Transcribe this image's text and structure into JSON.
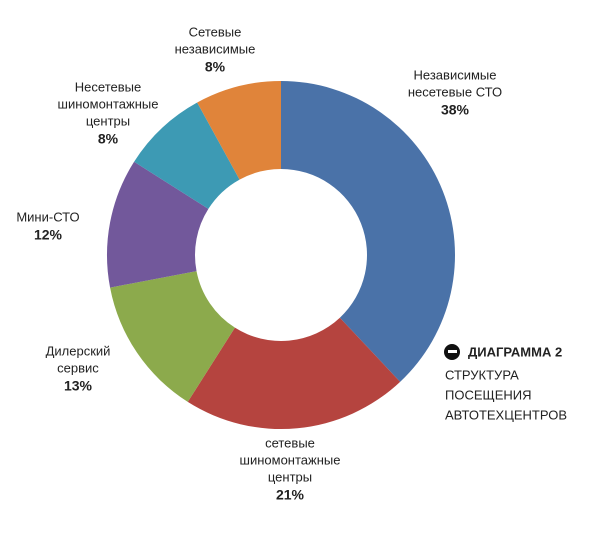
{
  "chart_data": {
    "type": "donut",
    "categories": [
      [
        "Независимые",
        "несетевые СТО"
      ],
      [
        "сетевые",
        "шиномонтажные",
        "центры"
      ],
      [
        "Дилерский",
        "сервис"
      ],
      [
        "Мини-СТО"
      ],
      [
        "Несетевые",
        "шиномонтажные",
        "центры"
      ],
      [
        "Сетевые",
        "независимые"
      ]
    ],
    "values": [
      38,
      21,
      13,
      12,
      8,
      8
    ],
    "value_labels": [
      "38%",
      "21%",
      "13%",
      "12%",
      "8%",
      "8%"
    ],
    "colors": [
      "#4a72a8",
      "#b5443f",
      "#8caa4c",
      "#72589b",
      "#3d9ab4",
      "#e0843a"
    ],
    "title": "ДИАГРАММА 2",
    "subtitle": [
      "СТРУКТУРА",
      "ПОСЕЩЕНИЯ",
      "АВТОТЕХЦЕНТРОВ"
    ]
  }
}
